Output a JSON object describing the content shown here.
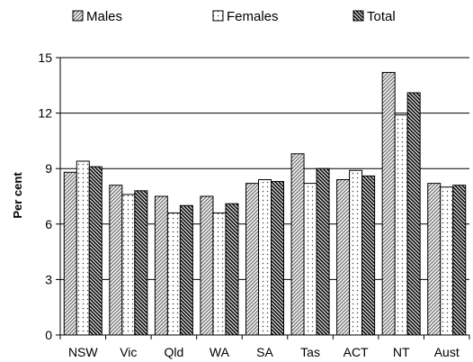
{
  "chart_data": {
    "type": "bar",
    "title": "",
    "xlabel": "",
    "ylabel": "Per cent",
    "ylim": [
      0,
      15
    ],
    "yticks": [
      "0",
      "3",
      "6",
      "9",
      "12",
      "15"
    ],
    "grid": true,
    "legend_position": "top",
    "categories": [
      "NSW",
      "Vic",
      "Qld",
      "WA",
      "SA",
      "Tas",
      "ACT",
      "NT",
      "Aust"
    ],
    "series": [
      {
        "name": "Males",
        "pattern": "diagonal-light",
        "values": [
          8.8,
          8.1,
          7.5,
          7.5,
          8.2,
          9.8,
          8.4,
          14.2,
          8.2
        ]
      },
      {
        "name": "Females",
        "pattern": "dots",
        "values": [
          9.4,
          7.6,
          6.6,
          6.6,
          8.4,
          8.2,
          8.9,
          11.9,
          8.0
        ]
      },
      {
        "name": "Total",
        "pattern": "diagonal-dark",
        "values": [
          9.1,
          7.8,
          7.0,
          7.1,
          8.3,
          9.0,
          8.6,
          13.1,
          8.1
        ]
      }
    ]
  }
}
